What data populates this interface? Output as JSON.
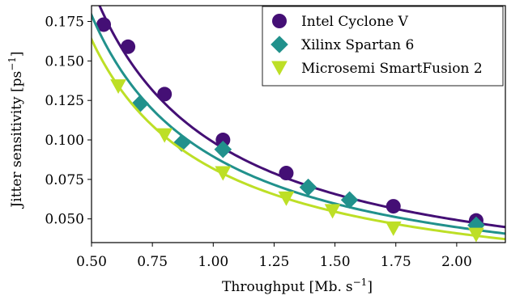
{
  "chart_data": {
    "type": "scatter",
    "title": "",
    "xlabel": "Throughput [Mb.",
    "xlabel_unit": "s",
    "xlabel_exp": "−1",
    "xlabel_close": "]",
    "ylabel": "Jitter sensitivity [ps",
    "ylabel_exp": "−1",
    "ylabel_close": "]",
    "xlim": [
      0.5,
      2.2
    ],
    "ylim": [
      0.035,
      0.185
    ],
    "xticks": [
      0.5,
      0.75,
      1.0,
      1.25,
      1.5,
      1.75,
      2.0
    ],
    "xtick_labels": [
      "0.50",
      "0.75",
      "1.00",
      "1.25",
      "1.50",
      "1.75",
      "2.00"
    ],
    "yticks": [
      0.05,
      0.075,
      0.1,
      0.125,
      0.15,
      0.175
    ],
    "ytick_labels": [
      "0.050",
      "0.075",
      "0.100",
      "0.125",
      "0.150",
      "0.175"
    ],
    "grid": false,
    "legend_position": "top-right",
    "series": [
      {
        "name": "Intel Cyclone V",
        "marker": "circle",
        "color": "#440f75",
        "fit_constant": 0.0986,
        "points": [
          [
            0.55,
            0.173
          ],
          [
            0.65,
            0.159
          ],
          [
            0.8,
            0.129
          ],
          [
            1.04,
            0.1
          ],
          [
            1.3,
            0.079
          ],
          [
            1.74,
            0.058
          ],
          [
            2.08,
            0.049
          ]
        ]
      },
      {
        "name": "Xilinx Spartan 6",
        "marker": "diamond",
        "color": "#21918c",
        "fit_constant": 0.0895,
        "points": [
          [
            0.7,
            0.123
          ],
          [
            0.87,
            0.098
          ],
          [
            1.04,
            0.094
          ],
          [
            1.39,
            0.07
          ],
          [
            1.56,
            0.062
          ],
          [
            2.08,
            0.046
          ]
        ]
      },
      {
        "name": "Microsemi SmartFusion 2",
        "marker": "triangle-down",
        "color": "#bddf26",
        "fit_constant": 0.0818,
        "points": [
          [
            0.61,
            0.134
          ],
          [
            0.8,
            0.103
          ],
          [
            1.04,
            0.079
          ],
          [
            1.3,
            0.063
          ],
          [
            1.49,
            0.055
          ],
          [
            1.74,
            0.044
          ],
          [
            2.08,
            0.04
          ]
        ]
      }
    ]
  }
}
